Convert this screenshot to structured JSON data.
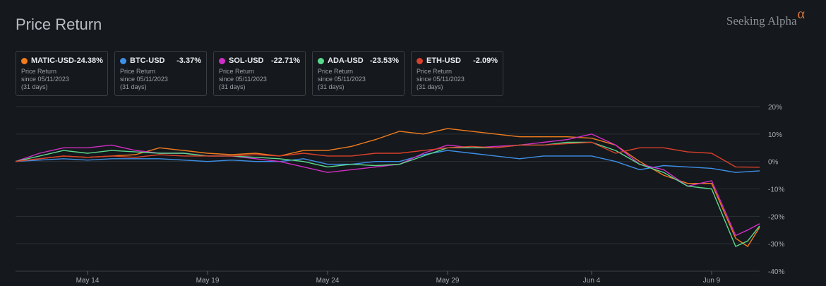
{
  "header": {
    "title": "Price Return",
    "brand": "Seeking Alpha",
    "brand_mark": "α"
  },
  "legend": [
    {
      "ticker": "MATIC-USD",
      "change": "-24.38%",
      "metric": "Price Return",
      "since": "since 05/11/2023",
      "days": "(31 days)",
      "color": "#f07c1e"
    },
    {
      "ticker": "BTC-USD",
      "change": "-3.37%",
      "metric": "Price Return",
      "since": "since 05/11/2023",
      "days": "(31 days)",
      "color": "#3d8fe8"
    },
    {
      "ticker": "SOL-USD",
      "change": "-22.71%",
      "metric": "Price Return",
      "since": "since 05/11/2023",
      "days": "(31 days)",
      "color": "#cf2fc6"
    },
    {
      "ticker": "ADA-USD",
      "change": "-23.53%",
      "metric": "Price Return",
      "since": "since 05/11/2023",
      "days": "(31 days)",
      "color": "#5ad98e"
    },
    {
      "ticker": "ETH-USD",
      "change": "-2.09%",
      "metric": "Price Return",
      "since": "since 05/11/2023",
      "days": "(31 days)",
      "color": "#d9402b"
    }
  ],
  "chart_data": {
    "type": "line",
    "title": "Price Return",
    "x_start": "2023-05-11",
    "x_end": "2023-06-11",
    "x_ticks": [
      {
        "date": "2023-05-14",
        "label": "May 14"
      },
      {
        "date": "2023-05-19",
        "label": "May 19"
      },
      {
        "date": "2023-05-24",
        "label": "May 24"
      },
      {
        "date": "2023-05-29",
        "label": "May 29"
      },
      {
        "date": "2023-06-04",
        "label": "Jun 4"
      },
      {
        "date": "2023-06-09",
        "label": "Jun 9"
      }
    ],
    "ylim": [
      -40,
      20
    ],
    "y_ticks": [
      20,
      10,
      0,
      -10,
      -20,
      -30,
      -40
    ],
    "y_tick_labels": [
      "20%",
      "10%",
      "0%",
      "-10%",
      "-20%",
      "-30%",
      "-40%"
    ],
    "grid": true,
    "legend_placement": "top",
    "series": [
      {
        "name": "MATIC-USD",
        "color": "#f07c1e",
        "points": [
          [
            "2023-05-11",
            0
          ],
          [
            "2023-05-12",
            1
          ],
          [
            "2023-05-13",
            2
          ],
          [
            "2023-05-14",
            1.5
          ],
          [
            "2023-05-15",
            2
          ],
          [
            "2023-05-16",
            2.5
          ],
          [
            "2023-05-17",
            5
          ],
          [
            "2023-05-18",
            4
          ],
          [
            "2023-05-19",
            3
          ],
          [
            "2023-05-20",
            2.5
          ],
          [
            "2023-05-21",
            3
          ],
          [
            "2023-05-22",
            2
          ],
          [
            "2023-05-23",
            4
          ],
          [
            "2023-05-24",
            4
          ],
          [
            "2023-05-25",
            5.5
          ],
          [
            "2023-05-26",
            8
          ],
          [
            "2023-05-27",
            11
          ],
          [
            "2023-05-28",
            10
          ],
          [
            "2023-05-29",
            12
          ],
          [
            "2023-05-30",
            11
          ],
          [
            "2023-05-31",
            10
          ],
          [
            "2023-06-01",
            9
          ],
          [
            "2023-06-02",
            9
          ],
          [
            "2023-06-03",
            9
          ],
          [
            "2023-06-04",
            8.5
          ],
          [
            "2023-06-05",
            6
          ],
          [
            "2023-06-06",
            0
          ],
          [
            "2023-06-07",
            -5
          ],
          [
            "2023-06-08",
            -8
          ],
          [
            "2023-06-09",
            -8
          ],
          [
            "2023-06-10",
            -28
          ],
          [
            "2023-06-10T12:00",
            -31
          ],
          [
            "2023-06-11",
            -24
          ]
        ]
      },
      {
        "name": "BTC-USD",
        "color": "#3d8fe8",
        "points": [
          [
            "2023-05-11",
            0
          ],
          [
            "2023-05-12",
            0.5
          ],
          [
            "2023-05-13",
            1
          ],
          [
            "2023-05-14",
            0.5
          ],
          [
            "2023-05-15",
            1
          ],
          [
            "2023-05-16",
            1
          ],
          [
            "2023-05-17",
            1
          ],
          [
            "2023-05-18",
            0.5
          ],
          [
            "2023-05-19",
            0
          ],
          [
            "2023-05-20",
            0.5
          ],
          [
            "2023-05-21",
            0
          ],
          [
            "2023-05-22",
            0
          ],
          [
            "2023-05-23",
            1
          ],
          [
            "2023-05-24",
            -1
          ],
          [
            "2023-05-25",
            -1
          ],
          [
            "2023-05-26",
            0
          ],
          [
            "2023-05-27",
            0
          ],
          [
            "2023-05-28",
            2.5
          ],
          [
            "2023-05-29",
            4
          ],
          [
            "2023-05-30",
            3
          ],
          [
            "2023-05-31",
            2
          ],
          [
            "2023-06-01",
            1
          ],
          [
            "2023-06-02",
            2
          ],
          [
            "2023-06-03",
            2
          ],
          [
            "2023-06-04",
            2
          ],
          [
            "2023-06-05",
            0
          ],
          [
            "2023-06-06",
            -3
          ],
          [
            "2023-06-07",
            -1.5
          ],
          [
            "2023-06-08",
            -2
          ],
          [
            "2023-06-09",
            -2.5
          ],
          [
            "2023-06-10",
            -4
          ],
          [
            "2023-06-11",
            -3.4
          ]
        ]
      },
      {
        "name": "SOL-USD",
        "color": "#cf2fc6",
        "points": [
          [
            "2023-05-11",
            0
          ],
          [
            "2023-05-12",
            3
          ],
          [
            "2023-05-13",
            5
          ],
          [
            "2023-05-14",
            5
          ],
          [
            "2023-05-15",
            6
          ],
          [
            "2023-05-16",
            4
          ],
          [
            "2023-05-17",
            3
          ],
          [
            "2023-05-18",
            3
          ],
          [
            "2023-05-19",
            2
          ],
          [
            "2023-05-20",
            2
          ],
          [
            "2023-05-21",
            1
          ],
          [
            "2023-05-22",
            0
          ],
          [
            "2023-05-23",
            -2
          ],
          [
            "2023-05-24",
            -4
          ],
          [
            "2023-05-25",
            -3
          ],
          [
            "2023-05-26",
            -2
          ],
          [
            "2023-05-27",
            -1
          ],
          [
            "2023-05-28",
            3
          ],
          [
            "2023-05-29",
            6
          ],
          [
            "2023-05-30",
            5
          ],
          [
            "2023-05-31",
            5.5
          ],
          [
            "2023-06-01",
            6
          ],
          [
            "2023-06-02",
            7
          ],
          [
            "2023-06-03",
            8
          ],
          [
            "2023-06-04",
            10
          ],
          [
            "2023-06-05",
            6
          ],
          [
            "2023-06-06",
            -1
          ],
          [
            "2023-06-07",
            -3
          ],
          [
            "2023-06-08",
            -9
          ],
          [
            "2023-06-09",
            -7
          ],
          [
            "2023-06-10",
            -27
          ],
          [
            "2023-06-10T12:00",
            -25
          ],
          [
            "2023-06-11",
            -22.7
          ]
        ]
      },
      {
        "name": "ADA-USD",
        "color": "#5ad98e",
        "points": [
          [
            "2023-05-11",
            0
          ],
          [
            "2023-05-12",
            2
          ],
          [
            "2023-05-13",
            4
          ],
          [
            "2023-05-14",
            3
          ],
          [
            "2023-05-15",
            4
          ],
          [
            "2023-05-16",
            3.5
          ],
          [
            "2023-05-17",
            3
          ],
          [
            "2023-05-18",
            3
          ],
          [
            "2023-05-19",
            2
          ],
          [
            "2023-05-20",
            2
          ],
          [
            "2023-05-21",
            1.5
          ],
          [
            "2023-05-22",
            1
          ],
          [
            "2023-05-23",
            0
          ],
          [
            "2023-05-24",
            -2
          ],
          [
            "2023-05-25",
            -1
          ],
          [
            "2023-05-26",
            -1.5
          ],
          [
            "2023-05-27",
            -1
          ],
          [
            "2023-05-28",
            2
          ],
          [
            "2023-05-29",
            5
          ],
          [
            "2023-05-30",
            5
          ],
          [
            "2023-05-31",
            5
          ],
          [
            "2023-06-01",
            6
          ],
          [
            "2023-06-02",
            6
          ],
          [
            "2023-06-03",
            7
          ],
          [
            "2023-06-04",
            7
          ],
          [
            "2023-06-05",
            4
          ],
          [
            "2023-06-06",
            -1
          ],
          [
            "2023-06-07",
            -4
          ],
          [
            "2023-06-08",
            -9
          ],
          [
            "2023-06-09",
            -10
          ],
          [
            "2023-06-10",
            -31
          ],
          [
            "2023-06-10T12:00",
            -29
          ],
          [
            "2023-06-11",
            -23.5
          ]
        ]
      },
      {
        "name": "ETH-USD",
        "color": "#d9402b",
        "points": [
          [
            "2023-05-11",
            0
          ],
          [
            "2023-05-12",
            1
          ],
          [
            "2023-05-13",
            2
          ],
          [
            "2023-05-14",
            1.5
          ],
          [
            "2023-05-15",
            2
          ],
          [
            "2023-05-16",
            1.5
          ],
          [
            "2023-05-17",
            2.5
          ],
          [
            "2023-05-18",
            2
          ],
          [
            "2023-05-19",
            2
          ],
          [
            "2023-05-20",
            2
          ],
          [
            "2023-05-21",
            2.5
          ],
          [
            "2023-05-22",
            2
          ],
          [
            "2023-05-23",
            3
          ],
          [
            "2023-05-24",
            2
          ],
          [
            "2023-05-25",
            2
          ],
          [
            "2023-05-26",
            3
          ],
          [
            "2023-05-27",
            3
          ],
          [
            "2023-05-28",
            4
          ],
          [
            "2023-05-29",
            5
          ],
          [
            "2023-05-30",
            5.5
          ],
          [
            "2023-05-31",
            5
          ],
          [
            "2023-06-01",
            6
          ],
          [
            "2023-06-02",
            6
          ],
          [
            "2023-06-03",
            6.5
          ],
          [
            "2023-06-04",
            7
          ],
          [
            "2023-06-05",
            3
          ],
          [
            "2023-06-06",
            5
          ],
          [
            "2023-06-07",
            5
          ],
          [
            "2023-06-08",
            3.5
          ],
          [
            "2023-06-09",
            3
          ],
          [
            "2023-06-10",
            -2
          ],
          [
            "2023-06-11",
            -2.1
          ]
        ]
      }
    ]
  }
}
